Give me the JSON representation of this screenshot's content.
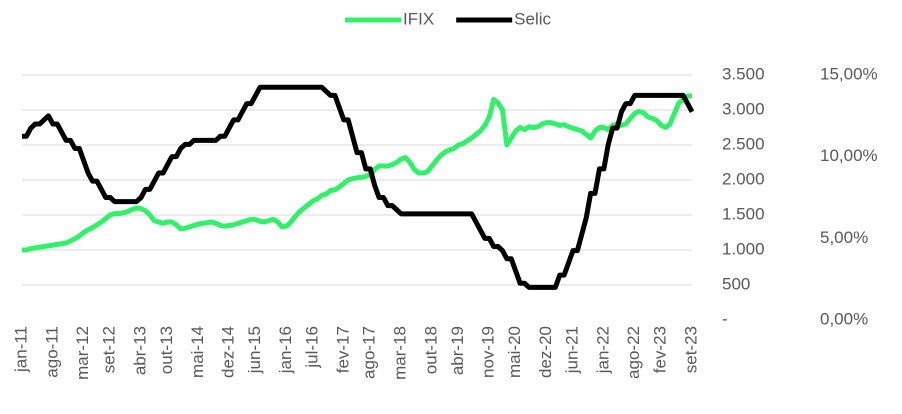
{
  "chart_data": {
    "type": "line",
    "categories": [
      "jan-11",
      null,
      null,
      null,
      null,
      null,
      null,
      "ago-11",
      null,
      null,
      null,
      null,
      null,
      null,
      "mar-12",
      null,
      null,
      null,
      null,
      null,
      "set-12",
      null,
      null,
      null,
      null,
      null,
      null,
      "abr-13",
      null,
      null,
      null,
      null,
      null,
      "out-13",
      null,
      null,
      null,
      null,
      null,
      null,
      "mai-14",
      null,
      null,
      null,
      null,
      null,
      null,
      "dez-14",
      null,
      null,
      null,
      null,
      null,
      "jun-15",
      null,
      null,
      null,
      null,
      null,
      null,
      "jan-16",
      null,
      null,
      null,
      null,
      null,
      "jul-16",
      null,
      null,
      null,
      null,
      null,
      null,
      "fev-17",
      null,
      null,
      null,
      null,
      null,
      "ago-17",
      null,
      null,
      null,
      null,
      null,
      null,
      "mar-18",
      null,
      null,
      null,
      null,
      null,
      null,
      "out-18",
      null,
      null,
      null,
      null,
      null,
      "abr-19",
      null,
      null,
      null,
      null,
      null,
      null,
      "nov-19",
      null,
      null,
      null,
      null,
      null,
      "mai-20",
      null,
      null,
      null,
      null,
      null,
      null,
      "dez-20",
      null,
      null,
      null,
      null,
      null,
      "jun-21",
      null,
      null,
      null,
      null,
      null,
      null,
      "jan-22",
      null,
      null,
      null,
      null,
      null,
      null,
      "ago-22",
      null,
      null,
      null,
      null,
      null,
      "fev-23",
      null,
      null,
      null,
      null,
      null,
      null,
      "set-23"
    ],
    "series": [
      {
        "name": "IFIX",
        "color": "#33f06b",
        "values": [
          1000,
          1000,
          1020,
          1030,
          1040,
          1050,
          1060,
          1070,
          1080,
          1090,
          1100,
          1130,
          1160,
          1200,
          1250,
          1290,
          1320,
          1360,
          1400,
          1450,
          1500,
          1520,
          1520,
          1530,
          1550,
          1580,
          1600,
          1590,
          1560,
          1500,
          1420,
          1400,
          1380,
          1400,
          1400,
          1360,
          1300,
          1310,
          1330,
          1350,
          1370,
          1380,
          1390,
          1400,
          1380,
          1350,
          1340,
          1350,
          1360,
          1380,
          1400,
          1420,
          1440,
          1430,
          1410,
          1400,
          1420,
          1440,
          1400,
          1330,
          1340,
          1400,
          1480,
          1550,
          1600,
          1650,
          1700,
          1730,
          1780,
          1800,
          1850,
          1860,
          1900,
          1950,
          2000,
          2020,
          2030,
          2040,
          2050,
          2080,
          2150,
          2200,
          2200,
          2200,
          2220,
          2250,
          2300,
          2320,
          2250,
          2150,
          2100,
          2100,
          2120,
          2200,
          2280,
          2350,
          2400,
          2430,
          2450,
          2500,
          2520,
          2560,
          2600,
          2650,
          2700,
          2780,
          2900,
          3150,
          3100,
          3000,
          2500,
          2600,
          2700,
          2750,
          2720,
          2760,
          2750,
          2760,
          2800,
          2820,
          2820,
          2800,
          2780,
          2790,
          2760,
          2740,
          2720,
          2700,
          2650,
          2600,
          2700,
          2750,
          2750,
          2720,
          2780,
          2800,
          2780,
          2800,
          2880,
          2950,
          2980,
          2960,
          2900,
          2880,
          2850,
          2780,
          2750,
          2800,
          2950,
          3100,
          3150,
          3200,
          3200
        ]
      },
      {
        "name": "Selic",
        "color": "#000000",
        "axis": "y2",
        "values": [
          11.25,
          11.25,
          11.75,
          12,
          12,
          12.25,
          12.5,
          12,
          12,
          11.5,
          11,
          11,
          10.5,
          10.5,
          9.75,
          9,
          8.5,
          8.5,
          8,
          7.5,
          7.5,
          7.25,
          7.25,
          7.25,
          7.25,
          7.25,
          7.25,
          7.5,
          8,
          8,
          8.5,
          9,
          9,
          9.5,
          10,
          10,
          10.5,
          10.75,
          10.75,
          11,
          11,
          11,
          11,
          11,
          11,
          11.25,
          11.25,
          11.75,
          12.25,
          12.25,
          12.75,
          13.25,
          13.25,
          13.75,
          14.25,
          14.25,
          14.25,
          14.25,
          14.25,
          14.25,
          14.25,
          14.25,
          14.25,
          14.25,
          14.25,
          14.25,
          14.25,
          14.25,
          14.25,
          14,
          13.75,
          13.75,
          13,
          12.25,
          12.25,
          11.25,
          10.25,
          10.25,
          9.25,
          9.25,
          8.25,
          7.5,
          7.5,
          7,
          7,
          6.75,
          6.5,
          6.5,
          6.5,
          6.5,
          6.5,
          6.5,
          6.5,
          6.5,
          6.5,
          6.5,
          6.5,
          6.5,
          6.5,
          6.5,
          6.5,
          6.5,
          6.5,
          6,
          5.5,
          5,
          5,
          4.5,
          4.5,
          4.25,
          3.75,
          3.75,
          3,
          2.25,
          2.25,
          2,
          2,
          2,
          2,
          2,
          2,
          2,
          2.75,
          2.75,
          3.5,
          4.25,
          4.25,
          5.25,
          6.25,
          7.75,
          7.75,
          9.25,
          9.25,
          10.75,
          11.75,
          11.75,
          12.75,
          13.25,
          13.25,
          13.75,
          13.75,
          13.75,
          13.75,
          13.75,
          13.75,
          13.75,
          13.75,
          13.75,
          13.75,
          13.75,
          13.75,
          13.25,
          12.75
        ]
      }
    ],
    "ylim": [
      0,
      3500
    ],
    "yticks": [
      {
        "value": 0,
        "label": "-"
      },
      500,
      {
        "value": 1000,
        "label": "1.000"
      },
      {
        "value": 1500,
        "label": "1.500"
      },
      {
        "value": 2000,
        "label": "2.000"
      },
      {
        "value": 2500,
        "label": "2.500"
      },
      {
        "value": 3000,
        "label": "3.000"
      },
      {
        "value": 3500,
        "label": "3.500"
      }
    ],
    "y2lim": [
      0,
      15
    ],
    "y2ticks": [
      {
        "value": 0,
        "label": "0,00%"
      },
      {
        "value": 5,
        "label": "5,00%"
      },
      {
        "value": 10,
        "label": "10,00%"
      },
      {
        "value": 15,
        "label": "15,00%"
      }
    ],
    "grid": true,
    "legend": "top"
  }
}
